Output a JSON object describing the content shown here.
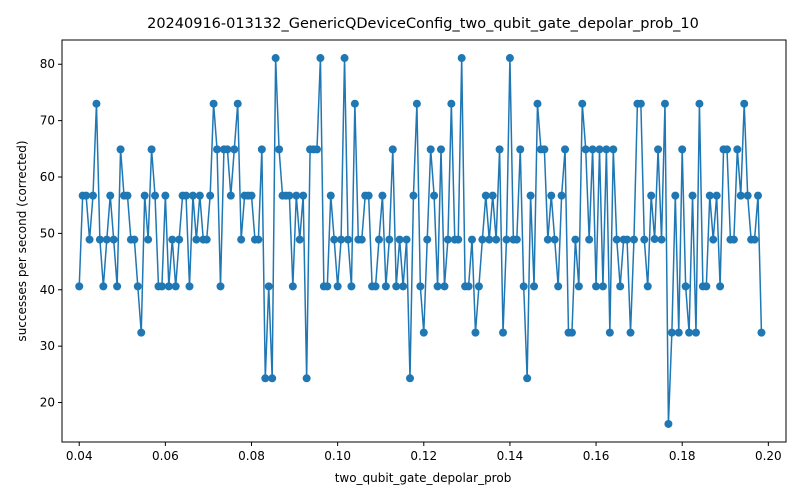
{
  "chart_data": {
    "type": "line",
    "title": "20240916-013132_GenericQDeviceConfig_two_qubit_gate_depolar_prob_10",
    "xlabel": "two_qubit_gate_depolar_prob",
    "ylabel": "successes per second (corrected)",
    "xlim": [
      0.036,
      0.2041
    ],
    "ylim": [
      13.0,
      84.3
    ],
    "xticks": [
      0.04,
      0.06,
      0.08,
      0.1,
      0.12,
      0.14,
      0.16,
      0.18,
      0.2
    ],
    "xtick_labels": [
      "0.04",
      "0.06",
      "0.08",
      "0.10",
      "0.12",
      "0.14",
      "0.16",
      "0.18",
      "0.20"
    ],
    "yticks": [
      20,
      30,
      40,
      50,
      60,
      70,
      80
    ],
    "ytick_labels": [
      "20",
      "30",
      "40",
      "50",
      "60",
      "70",
      "80"
    ],
    "grid": false,
    "series": [
      {
        "name": "successes per second (corrected)",
        "color": "#1f77b4",
        "x_start": 0.04,
        "x_step": 0.0008,
        "values": [
          40.6,
          56.7,
          56.7,
          48.9,
          56.7,
          73.0,
          48.9,
          40.6,
          48.9,
          56.7,
          48.9,
          40.6,
          64.9,
          56.7,
          56.7,
          48.9,
          48.9,
          40.6,
          32.4,
          56.7,
          48.9,
          64.9,
          56.7,
          40.6,
          40.6,
          56.7,
          40.6,
          48.9,
          40.6,
          48.9,
          56.7,
          56.7,
          40.6,
          56.7,
          48.9,
          56.7,
          48.9,
          48.9,
          56.7,
          73.0,
          64.9,
          40.6,
          64.9,
          64.9,
          56.7,
          64.9,
          73.0,
          48.9,
          56.7,
          56.7,
          56.7,
          48.9,
          48.9,
          64.9,
          24.3,
          40.6,
          24.3,
          81.1,
          64.9,
          56.7,
          56.7,
          56.7,
          40.6,
          56.7,
          48.9,
          56.7,
          24.3,
          64.9,
          64.9,
          64.9,
          81.1,
          40.6,
          40.6,
          56.7,
          48.9,
          40.6,
          48.9,
          81.1,
          48.9,
          40.6,
          73.0,
          48.9,
          48.9,
          56.7,
          56.7,
          40.6,
          40.6,
          48.9,
          56.7,
          40.6,
          48.9,
          64.9,
          40.6,
          48.9,
          40.6,
          48.9,
          24.3,
          56.7,
          73.0,
          40.6,
          32.4,
          48.9,
          64.9,
          56.7,
          40.6,
          64.9,
          40.6,
          48.9,
          73.0,
          48.9,
          48.9,
          81.1,
          40.6,
          40.6,
          48.9,
          32.4,
          40.6,
          48.9,
          56.7,
          48.9,
          56.7,
          48.9,
          64.9,
          32.4,
          48.9,
          81.1,
          48.9,
          48.9,
          64.9,
          40.6,
          24.3,
          56.7,
          40.6,
          73.0,
          64.9,
          64.9,
          48.9,
          56.7,
          48.9,
          40.6,
          56.7,
          64.9,
          32.4,
          32.4,
          48.9,
          40.6,
          73.0,
          64.9,
          48.9,
          64.9,
          40.6,
          64.9,
          40.6,
          64.9,
          32.4,
          64.9,
          48.9,
          40.6,
          48.9,
          48.9,
          32.4,
          48.9,
          73.0,
          73.0,
          48.9,
          40.6,
          56.7,
          49.0,
          64.9,
          48.9,
          73.0,
          16.2,
          32.4,
          56.7,
          32.4,
          64.9,
          40.6,
          32.4,
          56.7,
          32.4,
          73.0,
          40.6,
          40.6,
          56.7,
          48.9,
          56.7,
          40.6,
          64.9,
          64.9,
          48.9,
          48.9,
          64.9,
          56.7,
          73.0,
          56.7,
          48.9,
          48.9,
          56.7,
          32.4
        ]
      }
    ]
  }
}
